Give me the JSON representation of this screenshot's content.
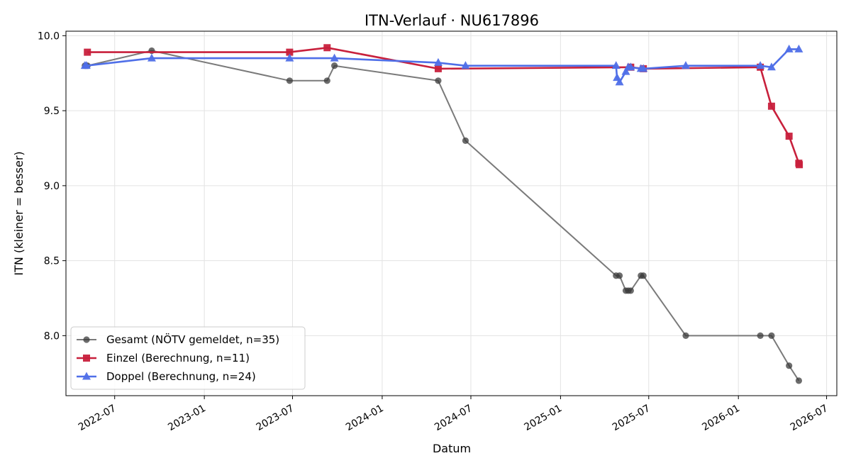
{
  "chart_data": {
    "type": "line",
    "title": "ITN-Verlauf · NU617896",
    "xlabel": "Datum",
    "ylabel": "ITN  (kleiner = besser)",
    "xlim": [
      "2022-03-23",
      "2026-07-22"
    ],
    "ylim": [
      7.6,
      10.03
    ],
    "x_ticks": [
      "2022-07",
      "2023-01",
      "2023-07",
      "2024-01",
      "2024-07",
      "2025-01",
      "2025-07",
      "2026-01",
      "2026-07"
    ],
    "y_ticks": [
      "8.0",
      "8.5",
      "9.0",
      "9.5",
      "10.0"
    ],
    "grid": true,
    "legend_position": "lower-left",
    "series": [
      {
        "name": "Gesamt (NÖTV gemeldet, n=35)",
        "color": "#555555",
        "marker": "circle",
        "points": [
          {
            "x": "2022-05-01",
            "y": 9.8
          },
          {
            "x": "2022-05-03",
            "y": 9.8
          },
          {
            "x": "2022-05-06",
            "y": 9.8
          },
          {
            "x": "2022-09-15",
            "y": 9.9
          },
          {
            "x": "2023-06-25",
            "y": 9.7
          },
          {
            "x": "2023-09-10",
            "y": 9.7
          },
          {
            "x": "2023-09-25",
            "y": 9.8
          },
          {
            "x": "2024-04-25",
            "y": 9.7
          },
          {
            "x": "2024-06-20",
            "y": 9.3
          },
          {
            "x": "2025-04-25",
            "y": 8.4
          },
          {
            "x": "2025-05-02",
            "y": 8.4
          },
          {
            "x": "2025-05-15",
            "y": 8.3
          },
          {
            "x": "2025-05-20",
            "y": 8.3
          },
          {
            "x": "2025-05-25",
            "y": 8.3
          },
          {
            "x": "2025-06-15",
            "y": 8.4
          },
          {
            "x": "2025-06-20",
            "y": 8.4
          },
          {
            "x": "2025-09-15",
            "y": 8.0
          },
          {
            "x": "2026-02-15",
            "y": 8.0
          },
          {
            "x": "2026-03-10",
            "y": 8.0
          },
          {
            "x": "2026-04-15",
            "y": 7.8
          },
          {
            "x": "2026-05-05",
            "y": 7.7
          }
        ]
      },
      {
        "name": "Einzel (Berechnung, n=11)",
        "color": "#c8203c",
        "marker": "square",
        "points": [
          {
            "x": "2022-05-06",
            "y": 9.89
          },
          {
            "x": "2023-06-25",
            "y": 9.89
          },
          {
            "x": "2023-09-10",
            "y": 9.92
          },
          {
            "x": "2024-04-25",
            "y": 9.78
          },
          {
            "x": "2025-05-25",
            "y": 9.79
          },
          {
            "x": "2025-06-20",
            "y": 9.78
          },
          {
            "x": "2026-02-15",
            "y": 9.79
          },
          {
            "x": "2026-03-10",
            "y": 9.53
          },
          {
            "x": "2026-04-15",
            "y": 9.33
          },
          {
            "x": "2026-05-05",
            "y": 9.15
          },
          {
            "x": "2026-05-06",
            "y": 9.14
          }
        ]
      },
      {
        "name": "Doppel (Berechnung, n=24)",
        "color": "#4f6fe8",
        "marker": "triangle",
        "points": [
          {
            "x": "2022-05-01",
            "y": 9.8
          },
          {
            "x": "2022-05-04",
            "y": 9.8
          },
          {
            "x": "2022-09-15",
            "y": 9.85
          },
          {
            "x": "2023-06-25",
            "y": 9.85
          },
          {
            "x": "2023-09-25",
            "y": 9.85
          },
          {
            "x": "2024-04-25",
            "y": 9.82
          },
          {
            "x": "2024-06-20",
            "y": 9.8
          },
          {
            "x": "2025-04-25",
            "y": 9.8
          },
          {
            "x": "2025-04-27",
            "y": 9.72
          },
          {
            "x": "2025-05-02",
            "y": 9.69
          },
          {
            "x": "2025-05-15",
            "y": 9.76
          },
          {
            "x": "2025-05-20",
            "y": 9.79
          },
          {
            "x": "2025-05-25",
            "y": 9.79
          },
          {
            "x": "2025-06-15",
            "y": 9.78
          },
          {
            "x": "2025-06-20",
            "y": 9.78
          },
          {
            "x": "2025-09-15",
            "y": 9.8
          },
          {
            "x": "2026-02-15",
            "y": 9.8
          },
          {
            "x": "2026-03-10",
            "y": 9.79
          },
          {
            "x": "2026-04-15",
            "y": 9.91
          },
          {
            "x": "2026-05-05",
            "y": 9.91
          }
        ]
      }
    ]
  }
}
